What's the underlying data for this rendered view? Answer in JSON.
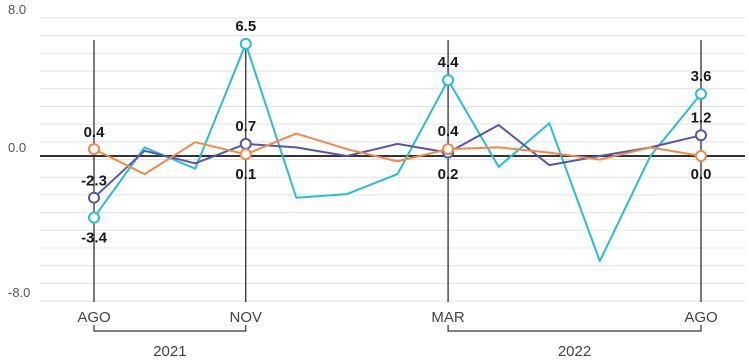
{
  "chart_data": {
    "type": "line",
    "ylim": [
      -8.0,
      8.0
    ],
    "yticks": [
      "8.0",
      "0.0",
      "-8.0"
    ],
    "grid": true,
    "x_labels": [
      "AGO",
      "NOV",
      "MAR",
      "AGO"
    ],
    "x_label_index": [
      0,
      3,
      7,
      12
    ],
    "years": [
      {
        "label": "2021",
        "from": 0,
        "to": 3
      },
      {
        "label": "2022",
        "from": 7,
        "to": 12
      }
    ],
    "series": [
      {
        "color": "#2bbcd4",
        "values": [
          -3.4,
          0.5,
          -0.7,
          6.5,
          -2.3,
          -2.1,
          -1.0,
          4.4,
          -0.6,
          1.9,
          -5.8,
          0.0,
          3.6
        ]
      },
      {
        "color": "#5558a8",
        "values": [
          -2.3,
          0.3,
          -0.4,
          0.7,
          0.5,
          0.0,
          0.7,
          0.2,
          1.8,
          -0.5,
          0.0,
          0.5,
          1.2
        ]
      },
      {
        "color": "#f0894a",
        "values": [
          0.4,
          -1.0,
          0.8,
          0.1,
          1.3,
          0.4,
          -0.3,
          0.4,
          0.5,
          0.2,
          -0.2,
          0.5,
          0.0
        ]
      }
    ],
    "annotations": [
      {
        "index": 0,
        "top": "0.4",
        "bottom": "-2.3",
        "below": "-3.4"
      },
      {
        "index": 3,
        "top": "6.5",
        "middle": "0.7",
        "bottom": "0.1"
      },
      {
        "index": 7,
        "top": "4.4",
        "middle": "0.4",
        "bottom": "0.2"
      },
      {
        "index": 12,
        "top": "3.6",
        "middle": "1.2",
        "bottom": "0.0"
      }
    ]
  }
}
